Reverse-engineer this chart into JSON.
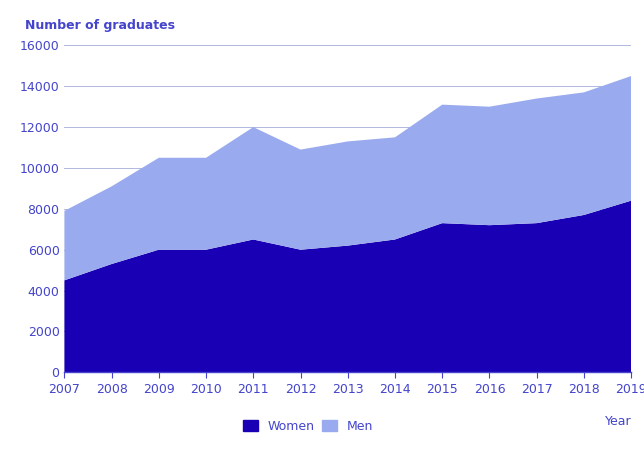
{
  "years": [
    2007,
    2008,
    2009,
    2010,
    2011,
    2012,
    2013,
    2014,
    2015,
    2016,
    2017,
    2018,
    2019
  ],
  "women": [
    4500,
    5300,
    6000,
    6000,
    6500,
    6000,
    6200,
    6500,
    7300,
    7200,
    7300,
    7700,
    8400
  ],
  "men": [
    3400,
    3800,
    4500,
    4500,
    5500,
    4900,
    5100,
    5000,
    5800,
    5800,
    6100,
    6000,
    6100
  ],
  "women_color": "#1a00b4",
  "men_color": "#99aaee",
  "ylabel": "Number of graduates",
  "xlabel": "Year",
  "ylim": [
    0,
    16000
  ],
  "yticks": [
    0,
    2000,
    4000,
    6000,
    8000,
    10000,
    12000,
    14000,
    16000
  ],
  "grid_color": "#b0b8e0",
  "axis_color": "#4444cc",
  "tick_color": "#4444cc",
  "label_fontsize": 9,
  "legend_fontsize": 9,
  "background_color": "#ffffff"
}
